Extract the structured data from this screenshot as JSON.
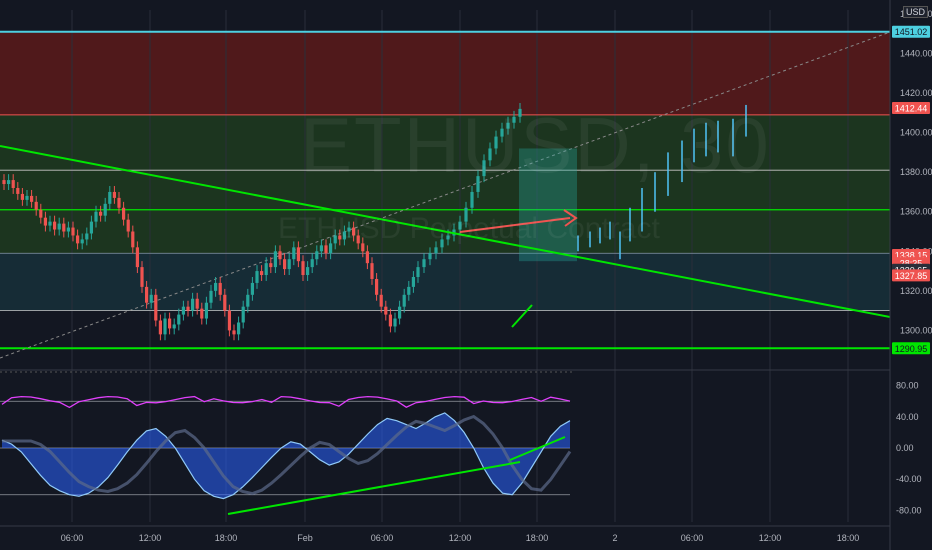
{
  "symbol": "ETHUSD",
  "interval": "30",
  "subtitle": "ETHUSD Perpetual Contract",
  "currency": "USD",
  "colors": {
    "background": "#131722",
    "up": "#26a69a",
    "down": "#ef5350",
    "trendline": "#00e600",
    "cyan_level": "#4dd0e1",
    "resistance_zone": "#5c1a1a",
    "target_zone": "#1f3b1f",
    "support_zone": "#17303a"
  },
  "chart_data": [
    {
      "type": "candlestick",
      "name": "price",
      "x_tick_labels": [
        "06:00",
        "12:00",
        "18:00",
        "Feb",
        "06:00",
        "12:00",
        "18:00",
        "2",
        "06:00",
        "12:00",
        "18:00"
      ],
      "y_tick_labels": [
        "1460.00",
        "1440.00",
        "1420.00",
        "1400.00",
        "1380.00",
        "1360.00",
        "1340.00",
        "1320.00",
        "1300.00"
      ],
      "y_ticks": [
        1460,
        1440,
        1420,
        1400,
        1380,
        1360,
        1340,
        1320,
        1300
      ],
      "ylim": [
        1282,
        1462
      ],
      "price_labels": [
        {
          "text": "1451.02",
          "value": 1451.02,
          "color": "#4dd0e1"
        },
        {
          "text": "1412.44",
          "value": 1412.44,
          "color": "#ef5350"
        },
        {
          "text": "1338.15",
          "value": 1338.15,
          "color": "#ef5350"
        },
        {
          "text": "28:35",
          "value": 1334.0,
          "color": "#ef5350"
        },
        {
          "text": "1330.65",
          "value": 1330.65,
          "color": "#2a2e39"
        },
        {
          "text": "1327.85",
          "value": 1327.85,
          "color": "#ef5350"
        },
        {
          "text": "1290.95",
          "value": 1290.95,
          "color": "#00e600"
        }
      ],
      "levels": [
        1451.02,
        1409,
        1381,
        1361,
        1339,
        1310,
        1291
      ],
      "zones": [
        {
          "from": 1409,
          "to": 1451.02,
          "color": "#5c1a1a"
        },
        {
          "from": 1339,
          "to": 1409,
          "color": "#1f3b1f"
        },
        {
          "from": 1310,
          "to": 1339,
          "color": "#17303a"
        }
      ],
      "closes": [
        1374,
        1376,
        1372,
        1369,
        1366,
        1368,
        1365,
        1361,
        1357,
        1353,
        1355,
        1351,
        1354,
        1350,
        1352,
        1348,
        1344,
        1346,
        1349,
        1355,
        1360,
        1358,
        1364,
        1370,
        1367,
        1362,
        1356,
        1350,
        1342,
        1332,
        1322,
        1314,
        1318,
        1305,
        1298,
        1306,
        1301,
        1303,
        1308,
        1312,
        1310,
        1316,
        1311,
        1306,
        1314,
        1320,
        1324,
        1318,
        1310,
        1300,
        1298,
        1304,
        1312,
        1318,
        1324,
        1330,
        1328,
        1334,
        1332,
        1340,
        1336,
        1331,
        1336,
        1342,
        1335,
        1328,
        1332,
        1336,
        1340,
        1343,
        1339,
        1344,
        1348,
        1346,
        1350,
        1352,
        1348,
        1344,
        1340,
        1334,
        1326,
        1318,
        1312,
        1308,
        1302,
        1306,
        1312,
        1318,
        1322,
        1327,
        1332,
        1336,
        1339,
        1342,
        1346,
        1348,
        1351,
        1355,
        1362,
        1370,
        1378,
        1386,
        1392,
        1398,
        1402,
        1405,
        1408,
        1412
      ]
    },
    {
      "type": "oscillator",
      "name": "indicator",
      "y_tick_labels": [
        "80.00",
        "40.00",
        "0.00",
        "-40.00",
        "-80.00"
      ],
      "y_ticks": [
        80,
        40,
        0,
        -40,
        -80
      ],
      "ylim": [
        -95,
        95
      ],
      "overbought": 60,
      "oversold": -60,
      "wave": [
        10,
        5,
        -5,
        -20,
        -35,
        -48,
        -55,
        -60,
        -62,
        -58,
        -50,
        -38,
        -22,
        -5,
        10,
        22,
        25,
        15,
        0,
        -20,
        -40,
        -55,
        -62,
        -65,
        -60,
        -50,
        -38,
        -25,
        -12,
        0,
        8,
        5,
        -5,
        -15,
        -22,
        -18,
        -8,
        5,
        18,
        30,
        38,
        35,
        30,
        25,
        32,
        40,
        45,
        35,
        20,
        0,
        -25,
        -45,
        -58,
        -60,
        -45,
        -25,
        -5,
        15,
        28,
        35
      ]
    }
  ]
}
